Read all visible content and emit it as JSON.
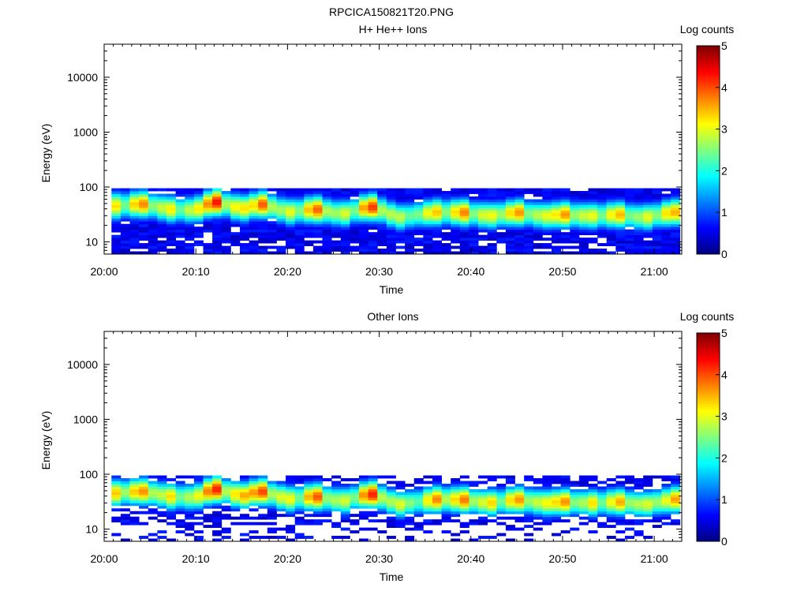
{
  "figure": {
    "title": "RPCICA150821T20.PNG"
  },
  "colorbar": {
    "label": "Log counts",
    "ticks": [
      "0",
      "1",
      "2",
      "3",
      "4",
      "5"
    ],
    "min": 0,
    "max": 5,
    "colormap": "jet"
  },
  "chart_data": [
    {
      "type": "heatmap",
      "title": "H+ He++ Ions",
      "xlabel": "Time",
      "ylabel": "Energy (eV)",
      "xlim": [
        "20:00",
        "21:03"
      ],
      "ylim": [
        6,
        40000
      ],
      "yscale": "log",
      "x_ticks": [
        "20:00",
        "20:10",
        "20:20",
        "20:30",
        "20:40",
        "20:50",
        "21:00"
      ],
      "y_ticks": [
        "10",
        "100",
        "1000",
        "10000"
      ],
      "colorbar_label": "Log counts",
      "band_energy_range_eV": [
        6,
        95
      ],
      "peak_energy_eV_by_time": [
        {
          "time": "20:01",
          "energy": 45
        },
        {
          "time": "20:04",
          "energy": 50
        },
        {
          "time": "20:07",
          "energy": 40
        },
        {
          "time": "20:10",
          "energy": 38
        },
        {
          "time": "20:12",
          "energy": 55
        },
        {
          "time": "20:15",
          "energy": 40
        },
        {
          "time": "20:17",
          "energy": 50
        },
        {
          "time": "20:20",
          "energy": 35
        },
        {
          "time": "20:23",
          "energy": 40
        },
        {
          "time": "20:26",
          "energy": 32
        },
        {
          "time": "20:29",
          "energy": 45
        },
        {
          "time": "20:32",
          "energy": 28
        },
        {
          "time": "20:36",
          "energy": 35
        },
        {
          "time": "20:39",
          "energy": 35
        },
        {
          "time": "20:42",
          "energy": 30
        },
        {
          "time": "20:45",
          "energy": 35
        },
        {
          "time": "20:48",
          "energy": 30
        },
        {
          "time": "20:50",
          "energy": 32
        },
        {
          "time": "20:53",
          "energy": 30
        },
        {
          "time": "20:56",
          "energy": 32
        },
        {
          "time": "20:59",
          "energy": 28
        },
        {
          "time": "21:02",
          "energy": 35
        }
      ],
      "peak_log_counts_by_time": [
        {
          "time": "20:01",
          "value": 3.4
        },
        {
          "time": "20:04",
          "value": 3.9
        },
        {
          "time": "20:07",
          "value": 3.3
        },
        {
          "time": "20:10",
          "value": 3.3
        },
        {
          "time": "20:12",
          "value": 4.6
        },
        {
          "time": "20:15",
          "value": 3.6
        },
        {
          "time": "20:17",
          "value": 4.2
        },
        {
          "time": "20:20",
          "value": 3.2
        },
        {
          "time": "20:23",
          "value": 4.3
        },
        {
          "time": "20:26",
          "value": 3.2
        },
        {
          "time": "20:29",
          "value": 4.4
        },
        {
          "time": "20:32",
          "value": 3.0
        },
        {
          "time": "20:36",
          "value": 3.8
        },
        {
          "time": "20:39",
          "value": 4.0
        },
        {
          "time": "20:42",
          "value": 3.4
        },
        {
          "time": "20:45",
          "value": 3.9
        },
        {
          "time": "20:48",
          "value": 3.3
        },
        {
          "time": "20:50",
          "value": 3.8
        },
        {
          "time": "20:53",
          "value": 3.2
        },
        {
          "time": "20:56",
          "value": 3.8
        },
        {
          "time": "20:59",
          "value": 3.1
        },
        {
          "time": "21:02",
          "value": 3.8
        }
      ],
      "sparsity": 0.05
    },
    {
      "type": "heatmap",
      "title": "Other Ions",
      "xlabel": "Time",
      "ylabel": "Energy (eV)",
      "xlim": [
        "20:00",
        "21:03"
      ],
      "ylim": [
        6,
        40000
      ],
      "yscale": "log",
      "x_ticks": [
        "20:00",
        "20:10",
        "20:20",
        "20:30",
        "20:40",
        "20:50",
        "21:00"
      ],
      "y_ticks": [
        "10",
        "100",
        "1000",
        "10000"
      ],
      "colorbar_label": "Log counts",
      "band_energy_range_eV": [
        6,
        95
      ],
      "peak_energy_eV_by_time": [
        {
          "time": "20:01",
          "energy": 45
        },
        {
          "time": "20:04",
          "energy": 50
        },
        {
          "time": "20:07",
          "energy": 40
        },
        {
          "time": "20:10",
          "energy": 38
        },
        {
          "time": "20:12",
          "energy": 55
        },
        {
          "time": "20:15",
          "energy": 40
        },
        {
          "time": "20:17",
          "energy": 50
        },
        {
          "time": "20:20",
          "energy": 35
        },
        {
          "time": "20:23",
          "energy": 40
        },
        {
          "time": "20:26",
          "energy": 32
        },
        {
          "time": "20:29",
          "energy": 45
        },
        {
          "time": "20:32",
          "energy": 28
        },
        {
          "time": "20:36",
          "energy": 35
        },
        {
          "time": "20:39",
          "energy": 35
        },
        {
          "time": "20:42",
          "energy": 30
        },
        {
          "time": "20:45",
          "energy": 35
        },
        {
          "time": "20:48",
          "energy": 30
        },
        {
          "time": "20:50",
          "energy": 32
        },
        {
          "time": "20:53",
          "energy": 30
        },
        {
          "time": "20:56",
          "energy": 32
        },
        {
          "time": "20:59",
          "energy": 28
        },
        {
          "time": "21:02",
          "energy": 35
        }
      ],
      "peak_log_counts_by_time": [
        {
          "time": "20:01",
          "value": 3.6
        },
        {
          "time": "20:04",
          "value": 4.0
        },
        {
          "time": "20:07",
          "value": 3.4
        },
        {
          "time": "20:10",
          "value": 3.3
        },
        {
          "time": "20:12",
          "value": 4.8
        },
        {
          "time": "20:15",
          "value": 3.7
        },
        {
          "time": "20:17",
          "value": 4.5
        },
        {
          "time": "20:20",
          "value": 3.3
        },
        {
          "time": "20:23",
          "value": 4.4
        },
        {
          "time": "20:26",
          "value": 3.2
        },
        {
          "time": "20:29",
          "value": 4.6
        },
        {
          "time": "20:32",
          "value": 3.1
        },
        {
          "time": "20:36",
          "value": 4.1
        },
        {
          "time": "20:39",
          "value": 4.2
        },
        {
          "time": "20:42",
          "value": 3.5
        },
        {
          "time": "20:45",
          "value": 4.1
        },
        {
          "time": "20:48",
          "value": 3.4
        },
        {
          "time": "20:50",
          "value": 3.9
        },
        {
          "time": "20:53",
          "value": 3.3
        },
        {
          "time": "20:56",
          "value": 4.0
        },
        {
          "time": "20:59",
          "value": 3.2
        },
        {
          "time": "21:02",
          "value": 3.9
        }
      ],
      "sparsity": 0.4
    }
  ]
}
